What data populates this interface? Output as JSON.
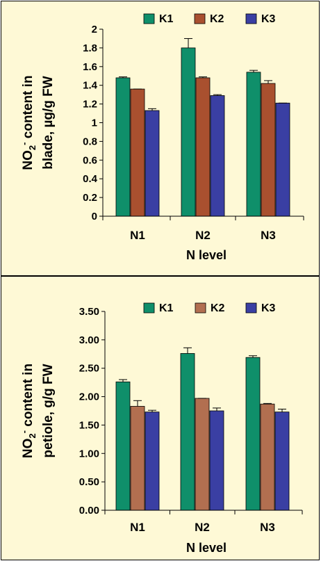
{
  "chart_data": [
    {
      "type": "bar",
      "ylabel_line1_main": "NO",
      "ylabel_line1_sub": "2",
      "ylabel_line1_sup": "-",
      "ylabel_line1_rest": " content in",
      "ylabel_line2": "blade, µg/g FW",
      "xlabel": "N level",
      "categories": [
        "N1",
        "N2",
        "N3"
      ],
      "ylim": [
        0,
        2
      ],
      "yticks": [
        "0",
        "0.2",
        "0.4",
        "0.6",
        "0.8",
        "1",
        "1.2",
        "1.4",
        "1.6",
        "1.8",
        "2"
      ],
      "ytick_values": [
        0,
        0.2,
        0.4,
        0.6,
        0.8,
        1,
        1.2,
        1.4,
        1.6,
        1.8,
        2
      ],
      "legend_position": "top",
      "series": [
        {
          "name": "K1",
          "color": "#0f8f6a",
          "values": [
            1.48,
            1.8,
            1.54
          ],
          "errors": [
            0.01,
            0.1,
            0.02
          ]
        },
        {
          "name": "K2",
          "color": "#a9502f",
          "values": [
            1.36,
            1.48,
            1.42
          ],
          "errors": [
            0.0,
            0.01,
            0.03
          ]
        },
        {
          "name": "K3",
          "color": "#3a3fa3",
          "values": [
            1.13,
            1.29,
            1.21
          ],
          "errors": [
            0.02,
            0.01,
            0.0
          ]
        }
      ]
    },
    {
      "type": "bar",
      "ylabel_line1_main": "NO",
      "ylabel_line1_sub": "2",
      "ylabel_line1_sup": "-",
      "ylabel_line1_rest": " content in",
      "ylabel_line2": "petiole, g/g FW",
      "xlabel": "N level",
      "categories": [
        "N1",
        "N2",
        "N3"
      ],
      "ylim": [
        0,
        3.5
      ],
      "yticks": [
        "0.00",
        "0.50",
        "1.00",
        "1.50",
        "2.00",
        "2.50",
        "3.00",
        "3.50"
      ],
      "ytick_values": [
        0,
        0.5,
        1,
        1.5,
        2,
        2.5,
        3,
        3.5
      ],
      "legend_position": "top",
      "series": [
        {
          "name": "K1",
          "color": "#0f8f6a",
          "values": [
            2.26,
            2.76,
            2.69
          ],
          "errors": [
            0.04,
            0.1,
            0.03
          ]
        },
        {
          "name": "K2",
          "color": "#b26f50",
          "values": [
            1.83,
            1.97,
            1.87
          ],
          "errors": [
            0.1,
            0.0,
            0.01
          ]
        },
        {
          "name": "K3",
          "color": "#3a3fa3",
          "values": [
            1.73,
            1.75,
            1.73
          ],
          "errors": [
            0.03,
            0.05,
            0.05
          ]
        }
      ]
    }
  ]
}
